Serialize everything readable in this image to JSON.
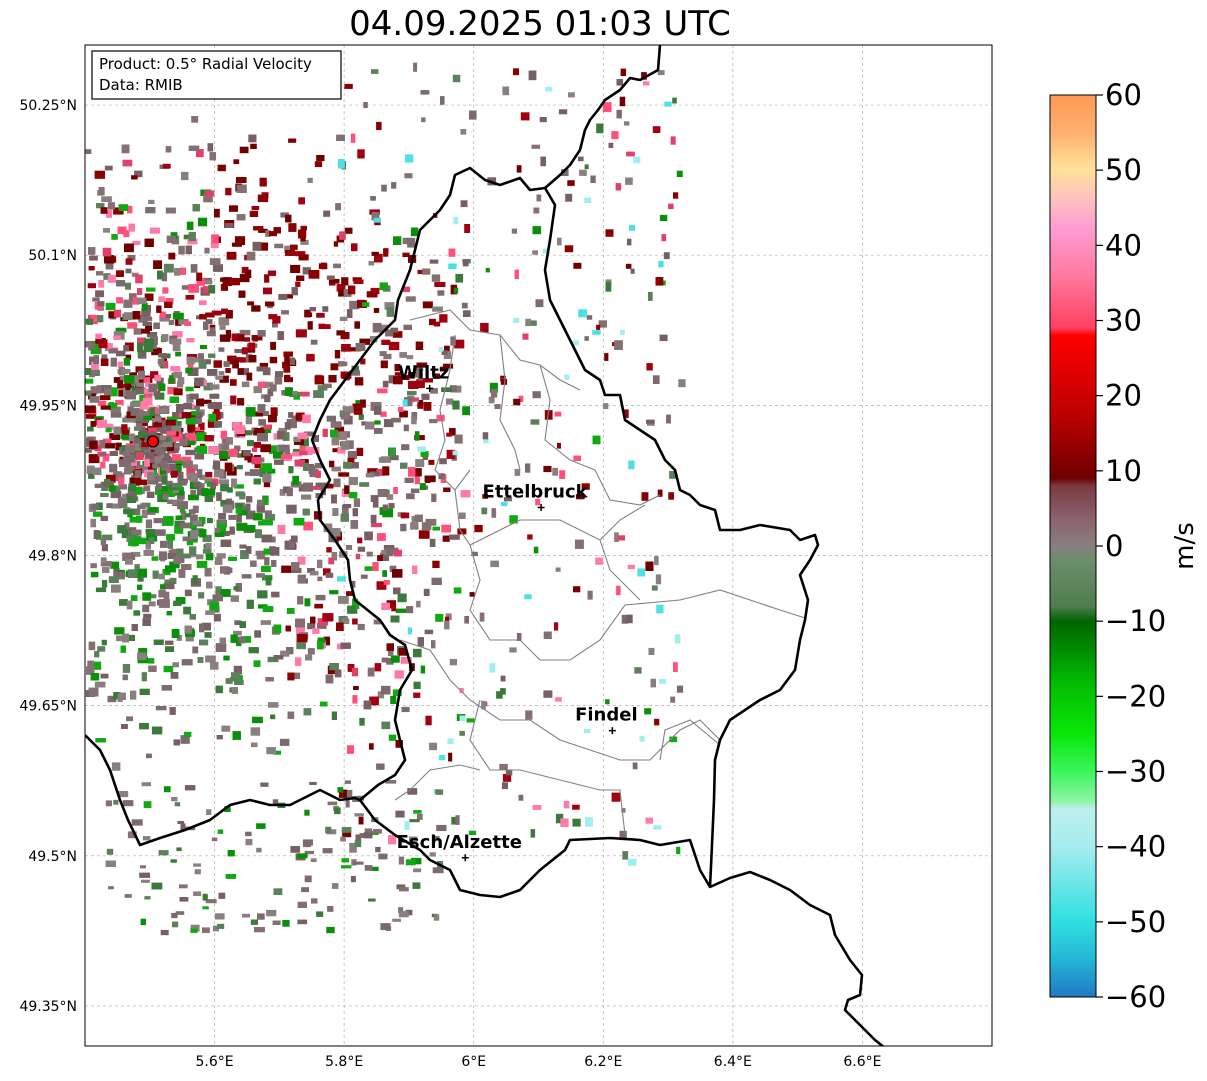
{
  "title": "04.09.2025 01:03 UTC",
  "info_box": {
    "product": "Product: 0.5° Radial Velocity",
    "data_source": "Data: RMIB"
  },
  "map": {
    "lon_range": [
      5.4,
      6.8
    ],
    "lat_range": [
      49.31,
      50.31
    ],
    "lon_ticks": [
      {
        "value": 5.6,
        "label": "5.6°E"
      },
      {
        "value": 5.8,
        "label": "5.8°E"
      },
      {
        "value": 6.0,
        "label": "6°E"
      },
      {
        "value": 6.2,
        "label": "6.2°E"
      },
      {
        "value": 6.4,
        "label": "6.4°E"
      },
      {
        "value": 6.6,
        "label": "6.6°E"
      }
    ],
    "lat_ticks": [
      {
        "value": 50.25,
        "label": "50.25°N"
      },
      {
        "value": 50.1,
        "label": "50.1°N"
      },
      {
        "value": 49.95,
        "label": "49.95°N"
      },
      {
        "value": 49.8,
        "label": "49.8°N"
      },
      {
        "value": 49.65,
        "label": "49.65°N"
      },
      {
        "value": 49.5,
        "label": "49.5°N"
      },
      {
        "value": 49.35,
        "label": "49.35°N"
      }
    ],
    "radar_site": {
      "lon": 5.505,
      "lat": 49.914
    },
    "cities": [
      {
        "name": "Wiltz",
        "lon": 5.932,
        "lat": 49.967
      },
      {
        "name": "Ettelbruck",
        "lon": 6.104,
        "lat": 49.848
      },
      {
        "name": "Findel",
        "lon": 6.214,
        "lat": 49.625
      },
      {
        "name": "Esch/Alzette",
        "lon": 5.987,
        "lat": 49.498
      }
    ]
  },
  "colorbar": {
    "label": "m/s",
    "vmin": -60,
    "vmax": 60,
    "ticks": [
      {
        "value": 60,
        "label": "60"
      },
      {
        "value": 50,
        "label": "50"
      },
      {
        "value": 40,
        "label": "40"
      },
      {
        "value": 30,
        "label": "30"
      },
      {
        "value": 20,
        "label": "20"
      },
      {
        "value": 10,
        "label": "10"
      },
      {
        "value": 0,
        "label": "0"
      },
      {
        "value": -10,
        "label": "−10"
      },
      {
        "value": -20,
        "label": "−20"
      },
      {
        "value": -30,
        "label": "−30"
      },
      {
        "value": -40,
        "label": "−40"
      },
      {
        "value": -50,
        "label": "−50"
      },
      {
        "value": -60,
        "label": "−60"
      }
    ],
    "stops": [
      {
        "value": -60,
        "color": "#1f78c4"
      },
      {
        "value": -55,
        "color": "#25b6d6"
      },
      {
        "value": -50,
        "color": "#2fe0e0"
      },
      {
        "value": -40,
        "color": "#a6ecee"
      },
      {
        "value": -35,
        "color": "#bdf0ec"
      },
      {
        "value": -34,
        "color": "#8ff5a8"
      },
      {
        "value": -30,
        "color": "#3cf55a"
      },
      {
        "value": -25,
        "color": "#08e808"
      },
      {
        "value": -18,
        "color": "#04b804"
      },
      {
        "value": -10,
        "color": "#006400"
      },
      {
        "value": -8,
        "color": "#4f7d4f"
      },
      {
        "value": -2,
        "color": "#6b8e6b"
      },
      {
        "value": 0,
        "color": "#8a7f7f"
      },
      {
        "value": 4,
        "color": "#8a5f6a"
      },
      {
        "value": 8,
        "color": "#7a3a40"
      },
      {
        "value": 9,
        "color": "#6e0000"
      },
      {
        "value": 18,
        "color": "#c00000"
      },
      {
        "value": 28,
        "color": "#ff0000"
      },
      {
        "value": 29,
        "color": "#ff4060"
      },
      {
        "value": 36,
        "color": "#ff7aa0"
      },
      {
        "value": 42,
        "color": "#ff9ad2"
      },
      {
        "value": 46,
        "color": "#ffc0c0"
      },
      {
        "value": 50,
        "color": "#ffe29a"
      },
      {
        "value": 55,
        "color": "#ffb070"
      },
      {
        "value": 60,
        "color": "#ff9a55"
      }
    ]
  }
}
